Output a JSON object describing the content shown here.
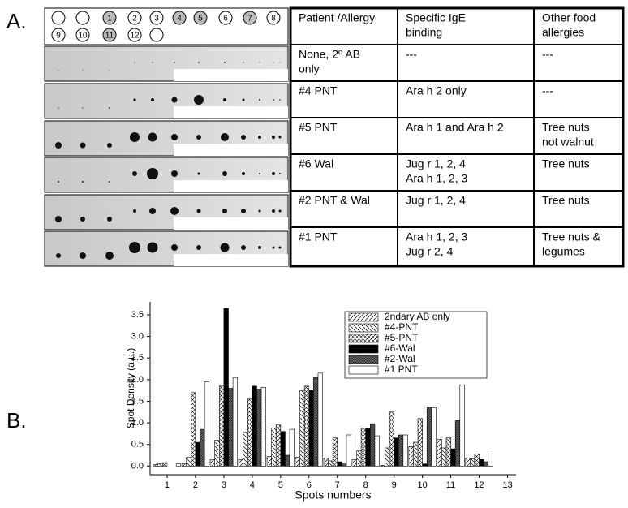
{
  "panel_a": {
    "label": "A.",
    "spots": [
      {
        "label": "1",
        "shaded": true
      },
      {
        "label": "2",
        "shaded": false
      },
      {
        "label": "3",
        "shaded": false
      },
      {
        "label": "4",
        "shaded": true
      },
      {
        "label": "5",
        "shaded": true
      },
      {
        "label": "6",
        "shaded": false
      },
      {
        "label": "7",
        "shaded": true
      },
      {
        "label": "8",
        "shaded": false
      },
      {
        "label": "9",
        "shaded": false
      },
      {
        "label": "10",
        "shaded": false
      },
      {
        "label": "11",
        "shaded": true
      },
      {
        "label": "12",
        "shaded": false
      }
    ],
    "table": {
      "header": [
        [
          "Patient /Allergy"
        ],
        [
          "Specific  IgE",
          "binding"
        ],
        [
          "Other food",
          "allergies"
        ]
      ],
      "rows": [
        [
          [
            "None, 2º AB",
            "only"
          ],
          [
            "---"
          ],
          [
            "---"
          ]
        ],
        [
          [
            "#4  PNT"
          ],
          [
            "Ara h 2 only"
          ],
          [
            "---"
          ]
        ],
        [
          [
            "#5   PNT"
          ],
          [
            "Ara h 1 and Ara h 2"
          ],
          [
            "Tree nuts",
            "not walnut"
          ]
        ],
        [
          [
            "#6  Wal"
          ],
          [
            "Jug r 1, 2, 4",
            "Ara h 1, 2, 3"
          ],
          [
            "Tree nuts"
          ]
        ],
        [
          [
            "#2 PNT & Wal"
          ],
          [
            "Jug r 1, 2, 4"
          ],
          [
            "Tree  nuts"
          ]
        ],
        [
          [
            "#1 PNT"
          ],
          [
            "Ara h 1, 2, 3",
            "Jug r 2, 4"
          ],
          [
            "Tree nuts &",
            "legumes"
          ]
        ]
      ]
    }
  },
  "panel_b_label": "B.",
  "chart_data": {
    "type": "bar",
    "x_label": "Spots numbers",
    "y_label": "Spot Density (a.u.)",
    "x": [
      1,
      2,
      3,
      4,
      5,
      6,
      7,
      8,
      9,
      10,
      11,
      12
    ],
    "xlim": [
      0.4,
      13.3
    ],
    "xticks": [
      1,
      2,
      3,
      4,
      5,
      6,
      7,
      8,
      9,
      10,
      11,
      12,
      13
    ],
    "ylim": [
      -0.2,
      3.8
    ],
    "yticks": [
      {
        "value": 0,
        "label": "0.0"
      },
      {
        "value": 0.5,
        "label": "0.5"
      },
      {
        "value": 1,
        "label": "1.0"
      },
      {
        "value": 1.5,
        "label": "1.5"
      },
      {
        "value": 2,
        "label": "2.0"
      },
      {
        "value": 2.5,
        "label": "2.5"
      },
      {
        "value": 3,
        "label": "3.0"
      },
      {
        "value": 3.5,
        "label": "3.5"
      }
    ],
    "series": [
      {
        "name": "2ndary AB only",
        "color": "#ffffff",
        "pattern": "diag-up",
        "values": [
          0.04,
          0.05,
          0.15,
          0.15,
          0.22,
          0.2,
          0.18,
          0.15,
          0.02,
          0.45,
          0.62,
          0.18
        ]
      },
      {
        "name": "#4-PNT",
        "color": "#ffffff",
        "pattern": "diag-down",
        "values": [
          0.06,
          0.2,
          0.6,
          0.78,
          0.88,
          1.75,
          0.12,
          0.35,
          0.42,
          0.55,
          0.42,
          0.17
        ]
      },
      {
        "name": "#5-PNT",
        "color": "#ffffff",
        "pattern": "cross",
        "values": [
          0.08,
          1.7,
          1.85,
          1.55,
          0.95,
          1.85,
          0.65,
          0.88,
          1.25,
          1.1,
          0.65,
          0.28
        ]
      },
      {
        "name": "#6-Wal",
        "color": "#000000",
        "pattern": "solid",
        "values": [
          0,
          0.55,
          3.65,
          1.85,
          0.8,
          1.75,
          0.1,
          0.88,
          0.65,
          0.05,
          0.4,
          0.15
        ]
      },
      {
        "name": "#2-Wal",
        "color": "#666666",
        "pattern": "dense",
        "values": [
          0,
          0.85,
          1.8,
          1.78,
          0.25,
          2.05,
          0.05,
          0.98,
          0.72,
          1.35,
          1.05,
          0.1
        ]
      },
      {
        "name": "#1 PNT",
        "color": "#ffffff",
        "pattern": "none",
        "values": [
          0.05,
          1.95,
          2.05,
          1.82,
          0.85,
          2.15,
          0.72,
          0.7,
          0.72,
          1.35,
          1.88,
          0.28
        ]
      }
    ]
  }
}
